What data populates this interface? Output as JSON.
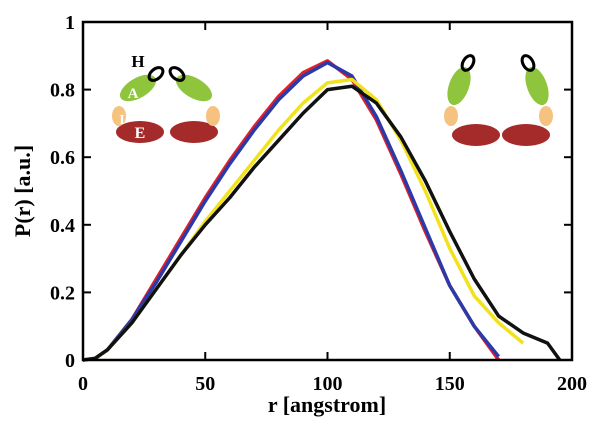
{
  "chart_data": {
    "type": "line",
    "x_label": "r [angstrom]",
    "y_label": "P(r) [a.u.]",
    "x": [
      0,
      5,
      10,
      20,
      30,
      40,
      50,
      60,
      70,
      80,
      90,
      100,
      110,
      120,
      130,
      140,
      150,
      160,
      170,
      180,
      190,
      195
    ],
    "series": [
      {
        "color": "#e0202a",
        "values": [
          0,
          0.005,
          0.03,
          0.12,
          0.24,
          0.36,
          0.48,
          0.59,
          0.69,
          0.78,
          0.85,
          0.885,
          0.83,
          0.71,
          0.55,
          0.38,
          0.22,
          0.1,
          0,
          null,
          null,
          null
        ]
      },
      {
        "color": "#2b3aa8",
        "values": [
          0,
          0.005,
          0.03,
          0.12,
          0.23,
          0.35,
          0.47,
          0.58,
          0.68,
          0.77,
          0.84,
          0.88,
          0.84,
          0.72,
          0.56,
          0.39,
          0.22,
          0.1,
          0.01,
          null,
          null,
          null
        ]
      },
      {
        "color": "#f2e21c",
        "values": [
          0,
          0.005,
          0.03,
          0.11,
          0.21,
          0.31,
          0.41,
          0.5,
          0.59,
          0.68,
          0.76,
          0.82,
          0.83,
          0.77,
          0.65,
          0.5,
          0.33,
          0.19,
          0.11,
          0.05,
          null,
          null
        ]
      },
      {
        "color": "#111111",
        "values": [
          0,
          0.005,
          0.03,
          0.11,
          0.21,
          0.31,
          0.4,
          0.48,
          0.57,
          0.65,
          0.73,
          0.8,
          0.81,
          0.76,
          0.66,
          0.53,
          0.38,
          0.24,
          0.13,
          0.08,
          0.05,
          0
        ]
      }
    ],
    "xlim": [
      0,
      200
    ],
    "xticks": [
      0,
      50,
      100,
      150,
      200
    ],
    "ylim": [
      0,
      1
    ],
    "yticks": [
      0,
      0.2,
      0.4,
      0.6,
      0.8,
      1
    ],
    "annotations": [
      "H",
      "A",
      "I",
      "E"
    ]
  }
}
